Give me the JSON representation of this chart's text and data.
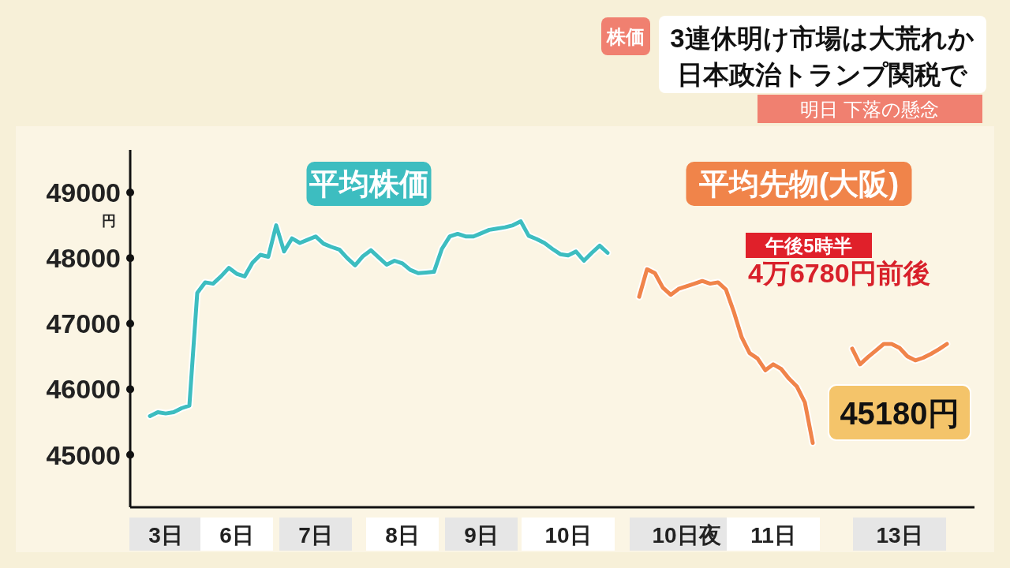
{
  "chart_data": {
    "type": "line",
    "title": "3連休明け市場は大荒れか日本政治トランプ関税で",
    "subtitle": "明日 下落の懸念",
    "ylabel": "円",
    "annotations": [
      "株価",
      "午後5時半",
      "4万6780円前後",
      "45180円"
    ],
    "categories": [
      null,
      null,
      null,
      null,
      "3日",
      null,
      null,
      null,
      null,
      null,
      null,
      null,
      null,
      "6日",
      null,
      null,
      null,
      null,
      null,
      null,
      null,
      null,
      null,
      "7日",
      null,
      null,
      null,
      null,
      null,
      null,
      null,
      null,
      null,
      null,
      "8日",
      null,
      null,
      null,
      null,
      null,
      null,
      null,
      null,
      null,
      "9日",
      null,
      null,
      null,
      null,
      null,
      null,
      null,
      null,
      null,
      null,
      "10日",
      null,
      null,
      null,
      null,
      null,
      null,
      null,
      null,
      null,
      null,
      null,
      null,
      null,
      null,
      "10日夜",
      null,
      null,
      null,
      null,
      null,
      null,
      null,
      null,
      null,
      null,
      "11日",
      null,
      null,
      null,
      null,
      null,
      null,
      null,
      null,
      null,
      null,
      null,
      null,
      null,
      null,
      null,
      "13日",
      null,
      null,
      null,
      null,
      null,
      null,
      null,
      null,
      null
    ],
    "ylim": [
      44200,
      49650
    ],
    "yticks": [
      45000,
      46000,
      47000,
      48000,
      49000
    ],
    "series": [
      {
        "name": "平均株価",
        "color": "#3dbdc0",
        "values": [
          null,
          null,
          45590,
          45650,
          45630,
          45650,
          45710,
          45750,
          47470,
          47630,
          47610,
          47720,
          47850,
          47760,
          47720,
          47930,
          48050,
          48020,
          48500,
          48100,
          48300,
          48230,
          48280,
          48330,
          48220,
          48170,
          48130,
          48000,
          47890,
          48030,
          48120,
          48010,
          47900,
          47960,
          47920,
          47820,
          47770,
          47780,
          47790,
          48140,
          48330,
          48370,
          48330,
          48330,
          48380,
          48430,
          48450,
          48470,
          48500,
          48560,
          48340,
          48290,
          48230,
          48140,
          48060,
          48040,
          48100,
          47960,
          48080,
          48190,
          48080,
          null,
          null,
          null,
          null,
          null,
          null,
          null,
          null,
          null,
          null,
          null,
          null,
          null,
          null,
          null,
          null,
          null,
          null,
          null,
          null,
          null,
          null,
          null,
          null,
          null,
          null,
          null,
          null,
          null,
          null,
          null,
          null,
          null,
          null,
          null,
          null,
          null,
          null,
          null,
          null,
          null,
          null,
          null,
          null,
          null,
          null
        ]
      },
      {
        "name": "平均先物(大阪)",
        "color": "#f0844a",
        "values": [
          null,
          null,
          null,
          null,
          null,
          null,
          null,
          null,
          null,
          null,
          null,
          null,
          null,
          null,
          null,
          null,
          null,
          null,
          null,
          null,
          null,
          null,
          null,
          null,
          null,
          null,
          null,
          null,
          null,
          null,
          null,
          null,
          null,
          null,
          null,
          null,
          null,
          null,
          null,
          null,
          null,
          null,
          null,
          null,
          null,
          null,
          null,
          null,
          null,
          null,
          null,
          null,
          null,
          null,
          null,
          null,
          null,
          null,
          null,
          null,
          null,
          null,
          null,
          null,
          47410,
          47830,
          47770,
          47550,
          47440,
          47530,
          47570,
          47610,
          47650,
          47610,
          47630,
          47520,
          47180,
          46790,
          46550,
          46470,
          46290,
          46380,
          46310,
          46160,
          46040,
          45800,
          45180,
          null,
          null,
          null,
          null,
          46620,
          46380,
          46490,
          46590,
          46690,
          46690,
          46630,
          46500,
          46440,
          46480,
          46540,
          46610,
          46690,
          null,
          null,
          null
        ]
      }
    ]
  }
}
